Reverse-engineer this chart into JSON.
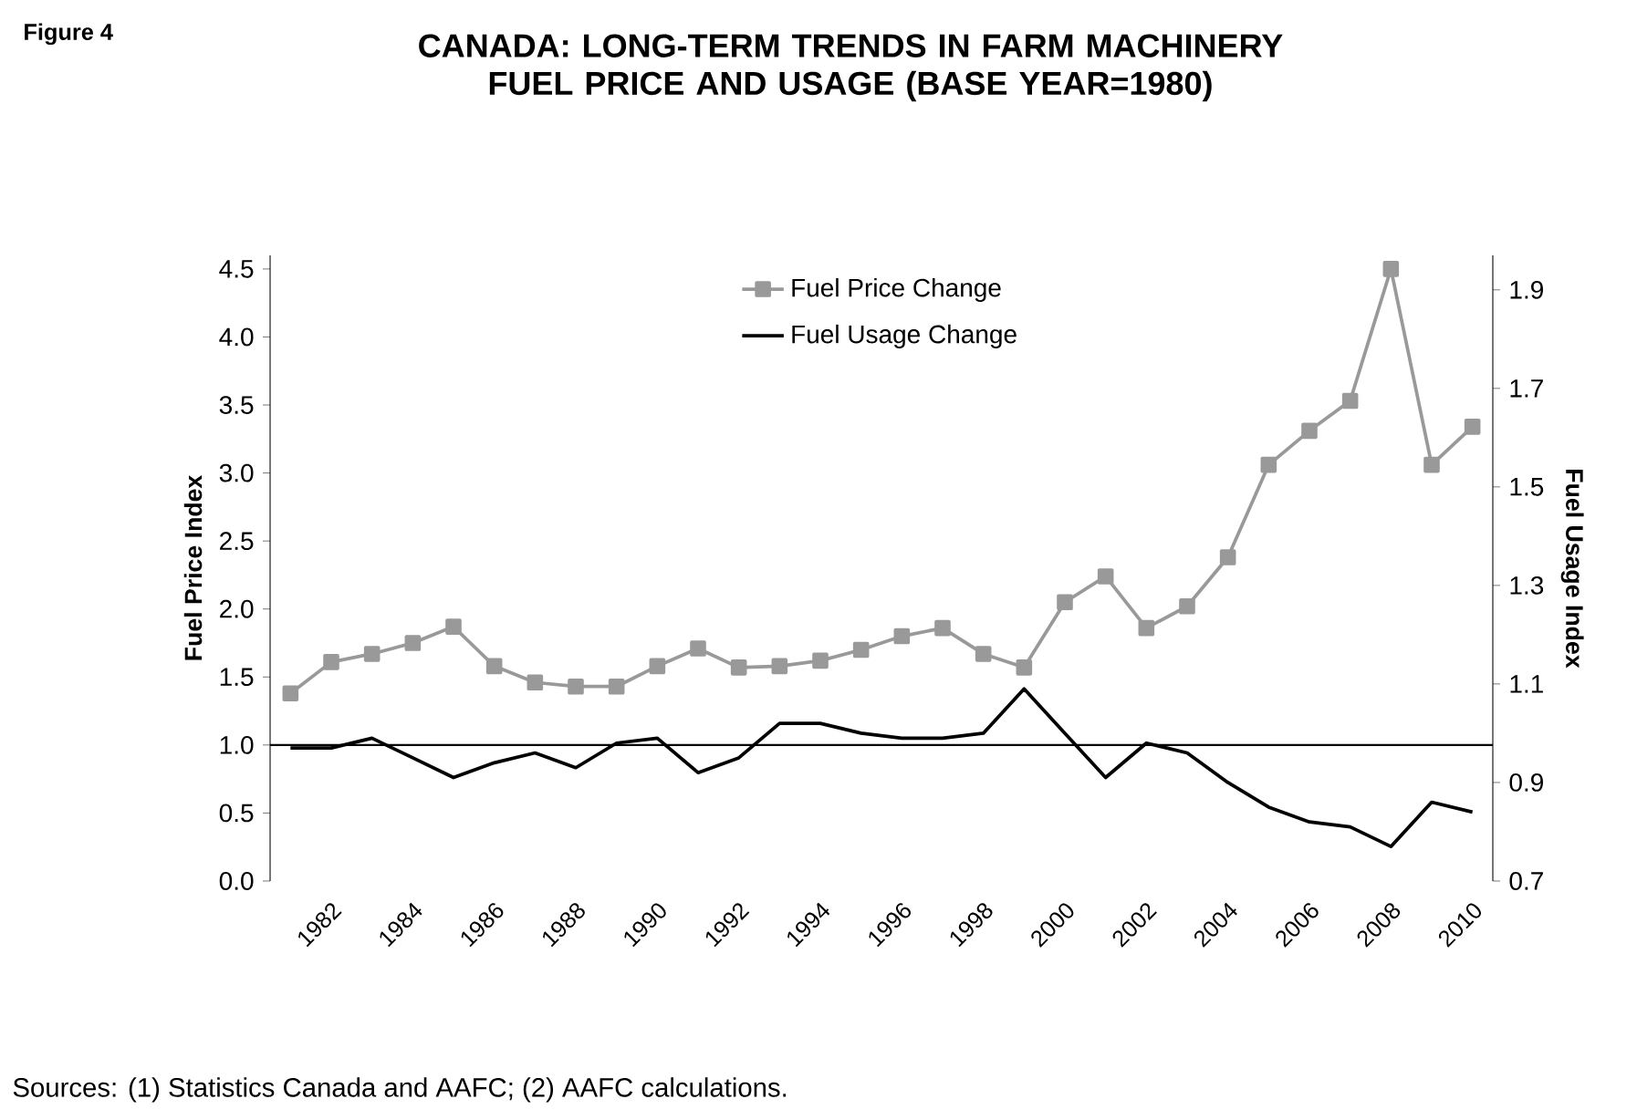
{
  "chart_data": {
    "type": "line",
    "title": "CANADA: LONG-TERM TRENDS IN FARM MACHINERY FUEL PRICE AND USAGE (BASE YEAR=1980)",
    "ylabel": "Fuel Price Index",
    "y2label": "Fuel Usage Index",
    "categories": [
      null,
      "1982",
      null,
      "1984",
      null,
      "1986",
      null,
      "1988",
      null,
      "1990",
      null,
      "1992",
      null,
      "1994",
      null,
      "1996",
      null,
      "1998",
      null,
      "2000",
      null,
      "2002",
      null,
      "2004",
      null,
      "2006",
      null,
      "2008",
      null,
      "2010"
    ],
    "series": [
      {
        "name": "Fuel Price Change",
        "color": "#999999",
        "marker": "square",
        "values": [
          1.38,
          1.61,
          1.67,
          1.75,
          1.87,
          1.58,
          1.46,
          1.43,
          1.43,
          1.58,
          1.71,
          1.57,
          1.58,
          1.62,
          1.7,
          1.8,
          1.86,
          1.67,
          1.57,
          2.05,
          2.24,
          1.86,
          2.02,
          2.38,
          3.06,
          3.31,
          3.53,
          4.5,
          3.06,
          3.34
        ]
      },
      {
        "name": "Fuel Usage Change",
        "color": "#000000",
        "marker": "none",
        "axis": "y2",
        "values": [
          0.97,
          0.97,
          0.99,
          0.95,
          0.91,
          0.94,
          0.96,
          0.93,
          0.98,
          0.99,
          0.92,
          0.95,
          1.02,
          1.02,
          1.0,
          0.99,
          0.99,
          1.0,
          1.09,
          1.0,
          0.91,
          0.98,
          0.96,
          0.9,
          0.85,
          0.82,
          0.81,
          0.77,
          0.86,
          0.84
        ]
      }
    ],
    "ylim": [
      0,
      4.6
    ],
    "yticks": [
      {
        "value": 0,
        "label": "0.0"
      },
      0.5,
      {
        "value": 1,
        "label": "1.0"
      },
      1.5,
      {
        "value": 2,
        "label": "2.0"
      },
      2.5,
      {
        "value": 3,
        "label": "3.0"
      },
      3.5,
      {
        "value": 4,
        "label": "4.0"
      },
      4.5
    ],
    "y2lim": [
      0.7,
      1.97
    ],
    "y2ticks": [
      0.7,
      0.9,
      1.1,
      1.3,
      1.5,
      1.7,
      1.9
    ],
    "ref_lines": [
      {
        "axis": "y",
        "value": 1,
        "color": "#000000"
      }
    ],
    "legend": "top",
    "grid": false,
    "annotations": [
      "Figure 4",
      "Sources: (1) Statistics Canada and AAFC; (2) AAFC calculations."
    ]
  }
}
